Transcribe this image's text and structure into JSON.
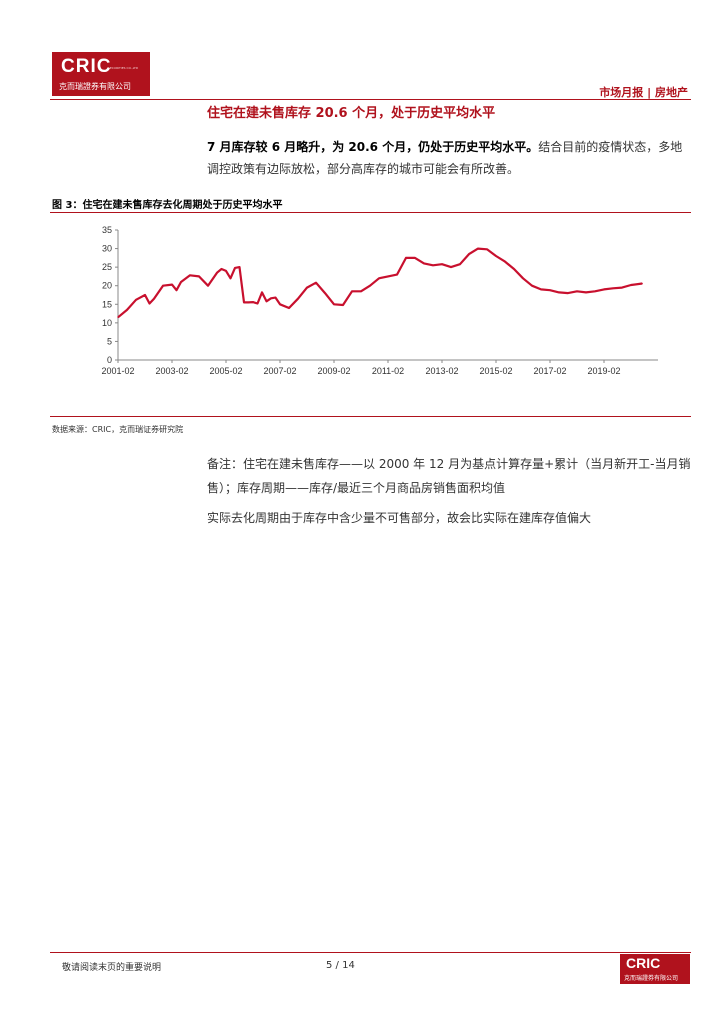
{
  "header": {
    "logo_text": "CRIC",
    "logo_small": "SECURITIES CO.,LTD",
    "logo_sub": "克而瑞證券有限公司",
    "right_text": "市场月报 | 房地产"
  },
  "section": {
    "title": "住宅在建未售库存 20.6 个月，处于历史平均水平",
    "lead_bold": "7 月库存较 6 月略升，为 20.6 个月，仍处于历史平均水平。",
    "lead_rest": "结合目前的疫情状态，多地调控政策有边际放松，部分高库存的城市可能会有所改善。"
  },
  "figure": {
    "title": "图 3：住宅在建未售库存去化周期处于历史平均水平",
    "source": "数据来源：CRIC，克而瑞证券研究院"
  },
  "chart_data": {
    "type": "line",
    "title": "",
    "xlabel": "",
    "ylabel": "",
    "ylim": [
      0,
      35
    ],
    "yticks": [
      "0",
      "5",
      "10",
      "15",
      "20",
      "25",
      "30",
      "35"
    ],
    "xticks": [
      "2001-02",
      "2003-02",
      "2005-02",
      "2007-02",
      "2009-02",
      "2011-02",
      "2013-02",
      "2015-02",
      "2017-02",
      "2019-02"
    ],
    "grid": false,
    "color": "#c8102e",
    "series": [
      {
        "x": [
          "2001-02",
          "2001-06",
          "2001-10",
          "2002-02",
          "2002-04",
          "2002-06",
          "2002-10",
          "2003-02",
          "2003-04",
          "2003-06",
          "2003-10",
          "2004-02",
          "2004-06",
          "2004-10",
          "2004-12",
          "2005-02",
          "2005-04",
          "2005-06",
          "2005-08",
          "2005-10",
          "2005-12",
          "2006-02",
          "2006-04",
          "2006-06",
          "2006-08",
          "2006-10",
          "2006-12",
          "2007-02",
          "2007-06",
          "2007-10",
          "2008-02",
          "2008-06",
          "2008-10",
          "2009-02",
          "2009-06",
          "2009-10",
          "2010-02",
          "2010-06",
          "2010-10",
          "2011-02",
          "2011-06",
          "2011-10",
          "2012-02",
          "2012-06",
          "2012-10",
          "2013-02",
          "2013-06",
          "2013-10",
          "2014-02",
          "2014-06",
          "2014-10",
          "2015-02",
          "2015-06",
          "2015-10",
          "2016-02",
          "2016-06",
          "2016-10",
          "2017-02",
          "2017-06",
          "2017-10",
          "2018-02",
          "2018-06",
          "2018-10",
          "2019-02",
          "2019-06",
          "2019-10",
          "2020-02",
          "2020-07"
        ],
        "values": [
          11.5,
          13.5,
          16.2,
          17.5,
          15.2,
          16.5,
          20.0,
          20.3,
          18.8,
          21.0,
          22.8,
          22.5,
          20.0,
          23.5,
          24.5,
          24.0,
          22.0,
          24.8,
          25.0,
          15.5,
          15.5,
          15.6,
          15.2,
          18.2,
          15.8,
          16.6,
          16.8,
          15.0,
          14.0,
          16.5,
          19.5,
          20.8,
          18.0,
          15.0,
          14.8,
          18.5,
          18.5,
          20.0,
          22.0,
          22.5,
          23.0,
          27.5,
          27.5,
          26.0,
          25.5,
          25.8,
          25.0,
          25.8,
          28.5,
          30.0,
          29.8,
          28.0,
          26.5,
          24.5,
          22.0,
          20.0,
          19.0,
          18.8,
          18.2,
          18.0,
          18.5,
          18.2,
          18.5,
          19.0,
          19.3,
          19.5,
          20.2,
          20.6
        ]
      }
    ]
  },
  "notes": {
    "note1": "备注：住宅在建未售库存——以 2000 年 12 月为基点计算存量+累计（当月新开工-当月销售）；库存周期——库存/最近三个月商品房销售面积均值",
    "note2": "实际去化周期由于库存中含少量不可售部分，故会比实际在建库存值偏大"
  },
  "footer": {
    "disclaimer": "敬请阅读末页的重要说明",
    "page": "5 / 14",
    "logo_text": "CRIC",
    "logo_sub": "克而瑞證券有限公司"
  }
}
